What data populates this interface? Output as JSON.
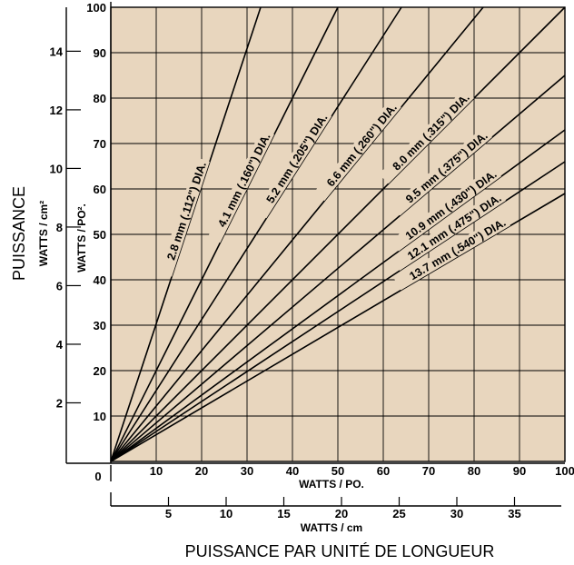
{
  "chart_data": {
    "type": "line",
    "bottom_title": "PUISSANCE PAR  UNITÉ DE LONGUEUR",
    "left_title": "PUISSANCE",
    "colors": {
      "plot_bg": "#e8d6be",
      "grid": "#000000",
      "line": "#000000"
    },
    "grid": true,
    "x_axis": {
      "label": "WATTS / PO.",
      "range": [
        0,
        100
      ],
      "ticks": [
        10,
        20,
        30,
        40,
        50,
        60,
        70,
        80,
        90,
        100
      ]
    },
    "x_axis_secondary": {
      "label": "WATTS / cm",
      "range": [
        0,
        39.37
      ],
      "ticks": [
        5,
        10,
        15,
        20,
        25,
        30,
        35
      ]
    },
    "origin_label": "0",
    "y_axis": {
      "label": "WATTS / PO².",
      "range": [
        0,
        100
      ],
      "ticks": [
        10,
        20,
        30,
        40,
        50,
        60,
        70,
        80,
        90,
        100
      ]
    },
    "y_axis_secondary": {
      "label": "WATTS / cm²",
      "range": [
        0,
        15.5
      ],
      "ticks": [
        2,
        4,
        6,
        8,
        10,
        12,
        14
      ]
    },
    "series": [
      {
        "name": "2.8 mm (.112\") DIA.",
        "x": [
          0,
          33
        ],
        "y": [
          0,
          100
        ]
      },
      {
        "name": "4.1 mm (.160\") DIA.",
        "x": [
          0,
          50
        ],
        "y": [
          0,
          100
        ]
      },
      {
        "name": "5.2 mm (.205\") DIA.",
        "x": [
          0,
          64
        ],
        "y": [
          0,
          100
        ]
      },
      {
        "name": "6.6 mm (.260\") DIA.",
        "x": [
          0,
          82
        ],
        "y": [
          0,
          100
        ]
      },
      {
        "name": "8.0 mm (.315\") DIA.",
        "x": [
          0,
          100
        ],
        "y": [
          0,
          100
        ]
      },
      {
        "name": "9.5 mm (.375\") DIA.",
        "x": [
          0,
          100
        ],
        "y": [
          0,
          85
        ]
      },
      {
        "name": "10.9 mm (.430\") DIA.",
        "x": [
          0,
          100
        ],
        "y": [
          0,
          73
        ]
      },
      {
        "name": "12.1 mm (.475\") DIA.",
        "x": [
          0,
          100
        ],
        "y": [
          0,
          66
        ]
      },
      {
        "name": "13.7 mm (.540\") DIA.",
        "x": [
          0,
          100
        ],
        "y": [
          0,
          59
        ]
      }
    ]
  }
}
